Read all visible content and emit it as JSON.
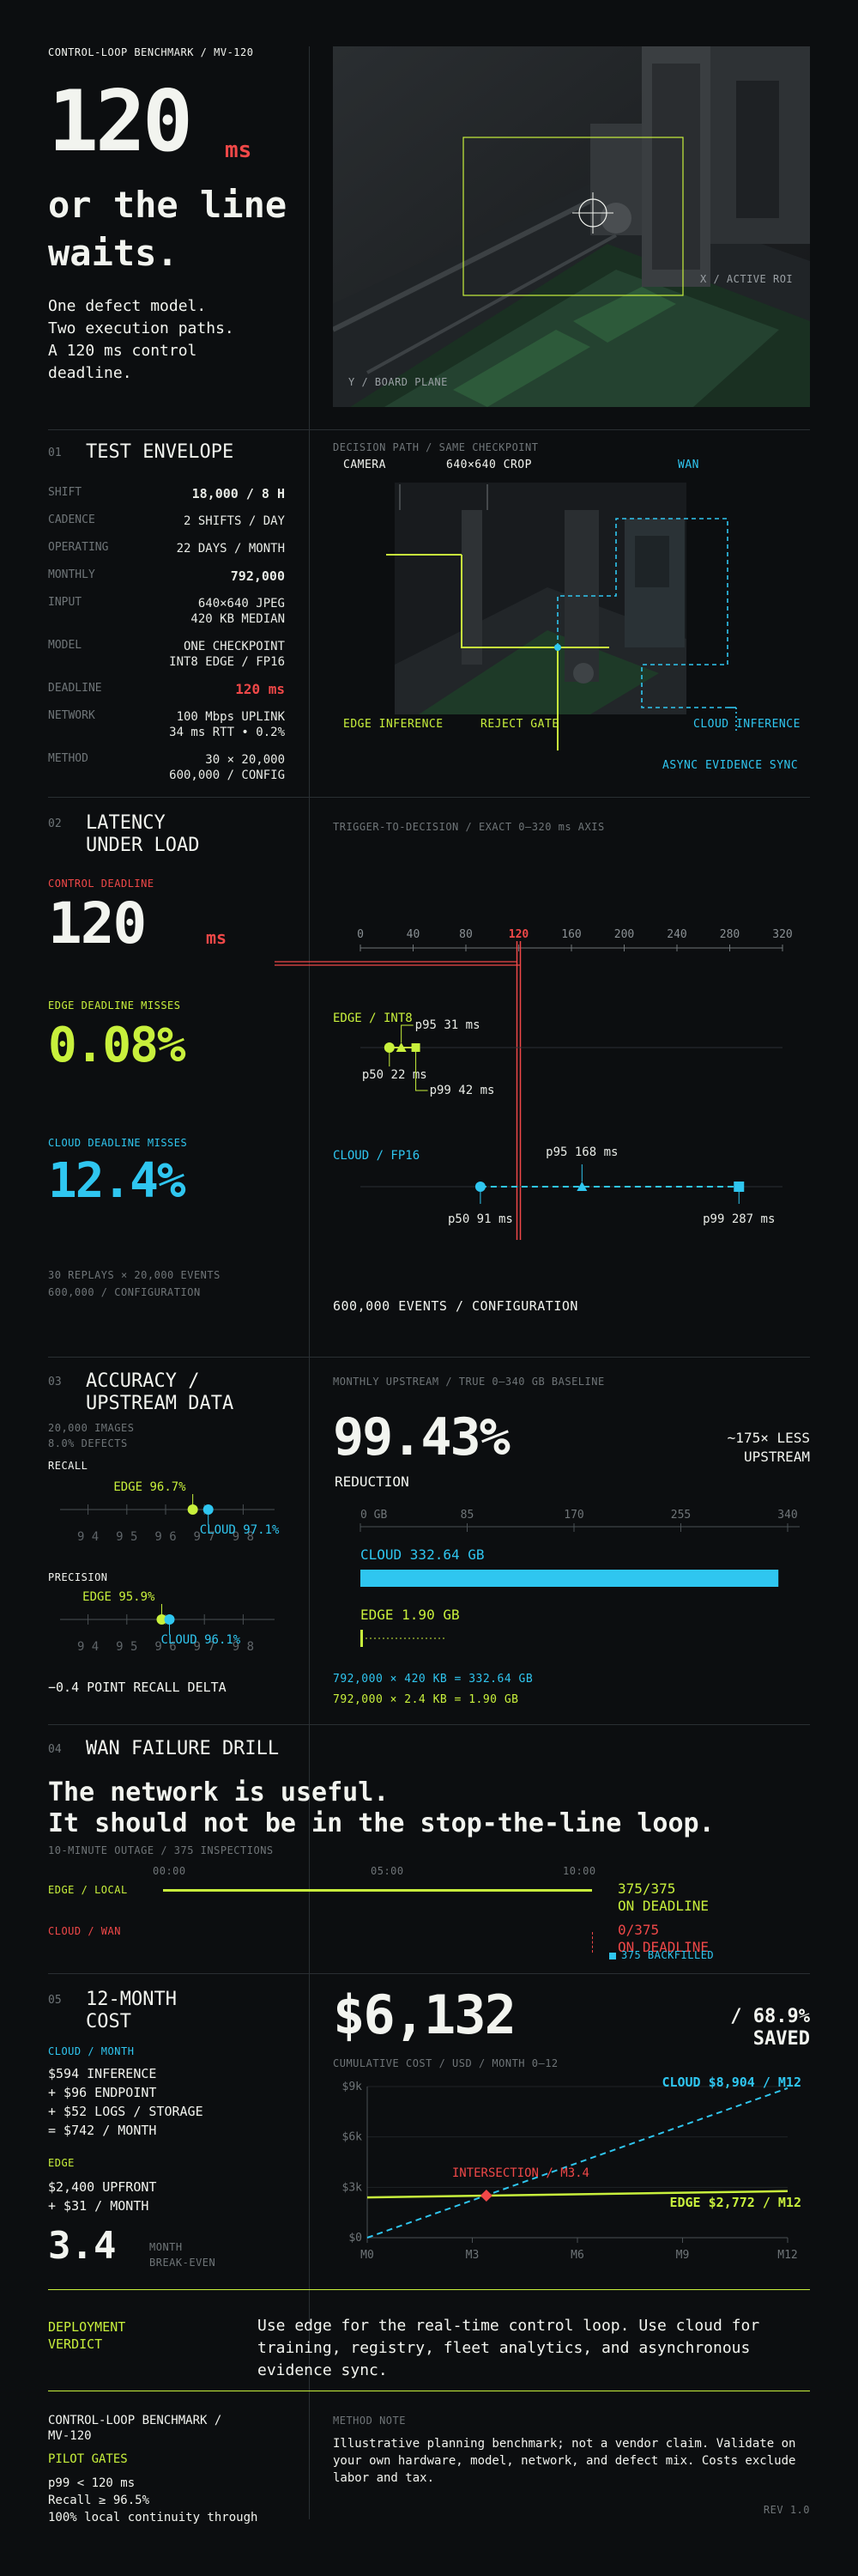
{
  "hero": {
    "eyebrow": "CONTROL-LOOP BENCHMARK / MV-120",
    "big_number": "120",
    "unit": "ms",
    "headline_1": "or the line",
    "headline_2": "waits.",
    "intro": [
      "One defect model.",
      "Two execution paths.",
      "A 120 ms control",
      "deadline."
    ],
    "photo_label_x": "X / ACTIVE ROI",
    "photo_label_y": "Y / BOARD PLANE"
  },
  "envelope": {
    "num": "01",
    "title": "TEST ENVELOPE",
    "rows": [
      {
        "key": "SHIFT",
        "val": "18,000 / 8 H"
      },
      {
        "key": "CADENCE",
        "val": "2 SHIFTS / DAY"
      },
      {
        "key": "OPERATING",
        "val": "22 DAYS / MONTH"
      },
      {
        "key": "MONTHLY",
        "val": "792,000"
      },
      {
        "key": "INPUT",
        "val": "640×640 JPEG\n420 KB MEDIAN"
      },
      {
        "key": "MODEL",
        "val": "ONE CHECKPOINT\nINT8 EDGE / FP16"
      },
      {
        "key": "DEADLINE",
        "val": "120 ms"
      },
      {
        "key": "NETWORK",
        "val": "100 Mbps UPLINK\n34 ms RTT • 0.2%"
      },
      {
        "key": "METHOD",
        "val": "30 × 20,000\n600,000 / CONFIG"
      }
    ],
    "diagram_title": "DECISION PATH / SAME CHECKPOINT",
    "camera": "CAMERA",
    "crop": "640×640 CROP",
    "wan": "WAN",
    "edge_inference": "EDGE INFERENCE",
    "reject_gate": "REJECT GATE",
    "cloud_inference": "CLOUD INFERENCE",
    "async": "ASYNC EVIDENCE SYNC"
  },
  "latency": {
    "num": "02",
    "title_1": "LATENCY",
    "title_2": "UNDER LOAD",
    "deadline_label": "CONTROL DEADLINE",
    "deadline_value": "120",
    "deadline_unit": "ms",
    "edge_label": "EDGE DEADLINE MISSES",
    "edge_value": "0.08%",
    "cloud_label": "CLOUD DEADLINE MISSES",
    "cloud_value": "12.4%",
    "footnote_1": "30 REPLAYS × 20,000 EVENTS",
    "footnote_2": "600,000 / CONFIGURATION",
    "chart_title": "TRIGGER-TO-DECISION / EXACT 0–320 ms AXIS",
    "events_caption": "600,000 EVENTS / CONFIGURATION"
  },
  "accuracy": {
    "num": "03",
    "title_1": "ACCURACY /",
    "title_2": "UPSTREAM DATA",
    "sub_1": "20,000 IMAGES",
    "sub_2": "8.0% DEFECTS",
    "recall": "RECALL",
    "recall_edge": "EDGE 96.7%",
    "recall_cloud": "CLOUD 97.1%",
    "precision": "PRECISION",
    "precision_edge": "EDGE 95.9%",
    "precision_cloud": "CLOUD 96.1%",
    "delta": "−0.4 POINT RECALL DELTA",
    "upstream_title": "MONTHLY UPSTREAM / TRUE 0–340 GB BASELINE",
    "reduction_value": "99.43%",
    "reduction_label": "REDUCTION",
    "less_1": "~175× LESS",
    "less_2": "UPSTREAM",
    "cloud_bar_label": "CLOUD 332.64 GB",
    "edge_bar_label": "EDGE 1.90 GB",
    "calc_cloud": "792,000 × 420 KB = 332.64 GB",
    "calc_edge": "792,000 × 2.4 KB = 1.90 GB"
  },
  "wan": {
    "num": "04",
    "title": "WAN FAILURE DRILL",
    "headline_1": "The network is useful.",
    "headline_2": "It should not be in the stop-the-line loop.",
    "sub": "10-MINUTE OUTAGE / 375 INSPECTIONS",
    "t0": "00:00",
    "t1": "05:00",
    "t2": "10:00",
    "edge_label": "EDGE / LOCAL",
    "cloud_label": "CLOUD / WAN",
    "edge_result_1": "375/375",
    "edge_result_2": "ON DEADLINE",
    "cloud_result_1": "0/375",
    "cloud_result_2": "ON DEADLINE",
    "backfilled": "375 BACKFILLED"
  },
  "cost": {
    "num": "05",
    "title_1": "12-MONTH",
    "title_2": "COST",
    "cloud_head": "CLOUD / MONTH",
    "cloud_lines": [
      "$594 INFERENCE",
      "+ $96 ENDPOINT",
      "+ $52 LOGS / STORAGE",
      "= $742 / MONTH"
    ],
    "edge_head": "EDGE",
    "edge_lines": [
      "$2,400 UPFRONT",
      "+ $31 / MONTH"
    ],
    "breakeven_value": "3.4",
    "breakeven_label_1": "MONTH",
    "breakeven_label_2": "BREAK-EVEN",
    "savings_value": "$6,132",
    "savings_pct": "/ 68.9%",
    "savings_word": "SAVED",
    "chart_title": "CUMULATIVE COST / USD / MONTH 0–12",
    "cloud_end": "CLOUD $8,904 / M12",
    "edge_end": "EDGE $2,772 / M12",
    "intersection": "INTERSECTION / M3.4"
  },
  "verdict": {
    "label_1": "DEPLOYMENT",
    "label_2": "VERDICT",
    "text": "Use edge for the real-time control loop. Use cloud for training, registry, fleet analytics, and asynchronous evidence sync."
  },
  "footer": {
    "title_1": "CONTROL-LOOP BENCHMARK /",
    "title_2": "MV-120",
    "gates": "PILOT GATES",
    "gate_lines": [
      "p99 < 120 ms",
      "Recall ≥ 96.5%",
      "100% local continuity through"
    ],
    "note_head": "METHOD NOTE",
    "note_text": "Illustrative planning benchmark; not a vendor claim. Validate on your own hardware, model, network, and defect mix. Costs exclude labor and tax.",
    "rev": "REV 1.0"
  },
  "chart_data": [
    {
      "type": "scatter",
      "title": "TRIGGER-TO-DECISION / EXACT 0–320 ms AXIS",
      "x_ticks": [
        "0",
        "40",
        "80",
        "120",
        "160",
        "200",
        "240",
        "280",
        "320"
      ],
      "xlim": [
        0,
        320
      ],
      "deadline": 120,
      "series": [
        {
          "name": "EDGE / INT8",
          "color": "#c8f03c",
          "p50": 22,
          "p95": 31,
          "p99": 42,
          "labels": {
            "p50": "p50 22 ms",
            "p95": "p95 31 ms",
            "p99": "p99 42 ms"
          }
        },
        {
          "name": "CLOUD / FP16",
          "color": "#2fc6f0",
          "p50": 91,
          "p95": 168,
          "p99": 287,
          "labels": {
            "p50": "p50 91 ms",
            "p95": "p95 168 ms",
            "p99": "p99 287 ms"
          }
        }
      ]
    },
    {
      "type": "scatter",
      "title": "RECALL",
      "x_ticks": [
        "94",
        "95",
        "96",
        "97",
        "98"
      ],
      "xlim": [
        93.5,
        98.5
      ],
      "series": [
        {
          "name": "EDGE",
          "value": 96.7,
          "color": "#c8f03c"
        },
        {
          "name": "CLOUD",
          "value": 97.1,
          "color": "#2fc6f0"
        }
      ]
    },
    {
      "type": "scatter",
      "title": "PRECISION",
      "x_ticks": [
        "94",
        "95",
        "96",
        "97",
        "98"
      ],
      "xlim": [
        93.5,
        98.5
      ],
      "series": [
        {
          "name": "EDGE",
          "value": 95.9,
          "color": "#c8f03c"
        },
        {
          "name": "CLOUD",
          "value": 96.1,
          "color": "#2fc6f0"
        }
      ]
    },
    {
      "type": "bar",
      "title": "MONTHLY UPSTREAM / TRUE 0–340 GB BASELINE",
      "x_ticks": [
        "0 GB",
        "85",
        "170",
        "255",
        "340"
      ],
      "xlim": [
        0,
        340
      ],
      "categories": [
        "CLOUD",
        "EDGE"
      ],
      "values": [
        332.64,
        1.9
      ],
      "colors": [
        "#2fc6f0",
        "#c8f03c"
      ]
    },
    {
      "type": "line",
      "title": "CUMULATIVE COST / USD / MONTH 0–12",
      "x_ticks": [
        "M0",
        "M3",
        "M6",
        "M9",
        "M12"
      ],
      "y_ticks": [
        "$0",
        "$3k",
        "$6k",
        "$9k"
      ],
      "xlim": [
        0,
        12
      ],
      "ylim": [
        0,
        9000
      ],
      "series": [
        {
          "name": "CLOUD",
          "x": [
            0,
            12
          ],
          "y": [
            0,
            8904
          ],
          "color": "#2fc6f0"
        },
        {
          "name": "EDGE",
          "x": [
            0,
            12
          ],
          "y": [
            2400,
            2772
          ],
          "color": "#c8f03c"
        }
      ],
      "intersection": {
        "x": 3.4,
        "y": 2505
      }
    }
  ]
}
